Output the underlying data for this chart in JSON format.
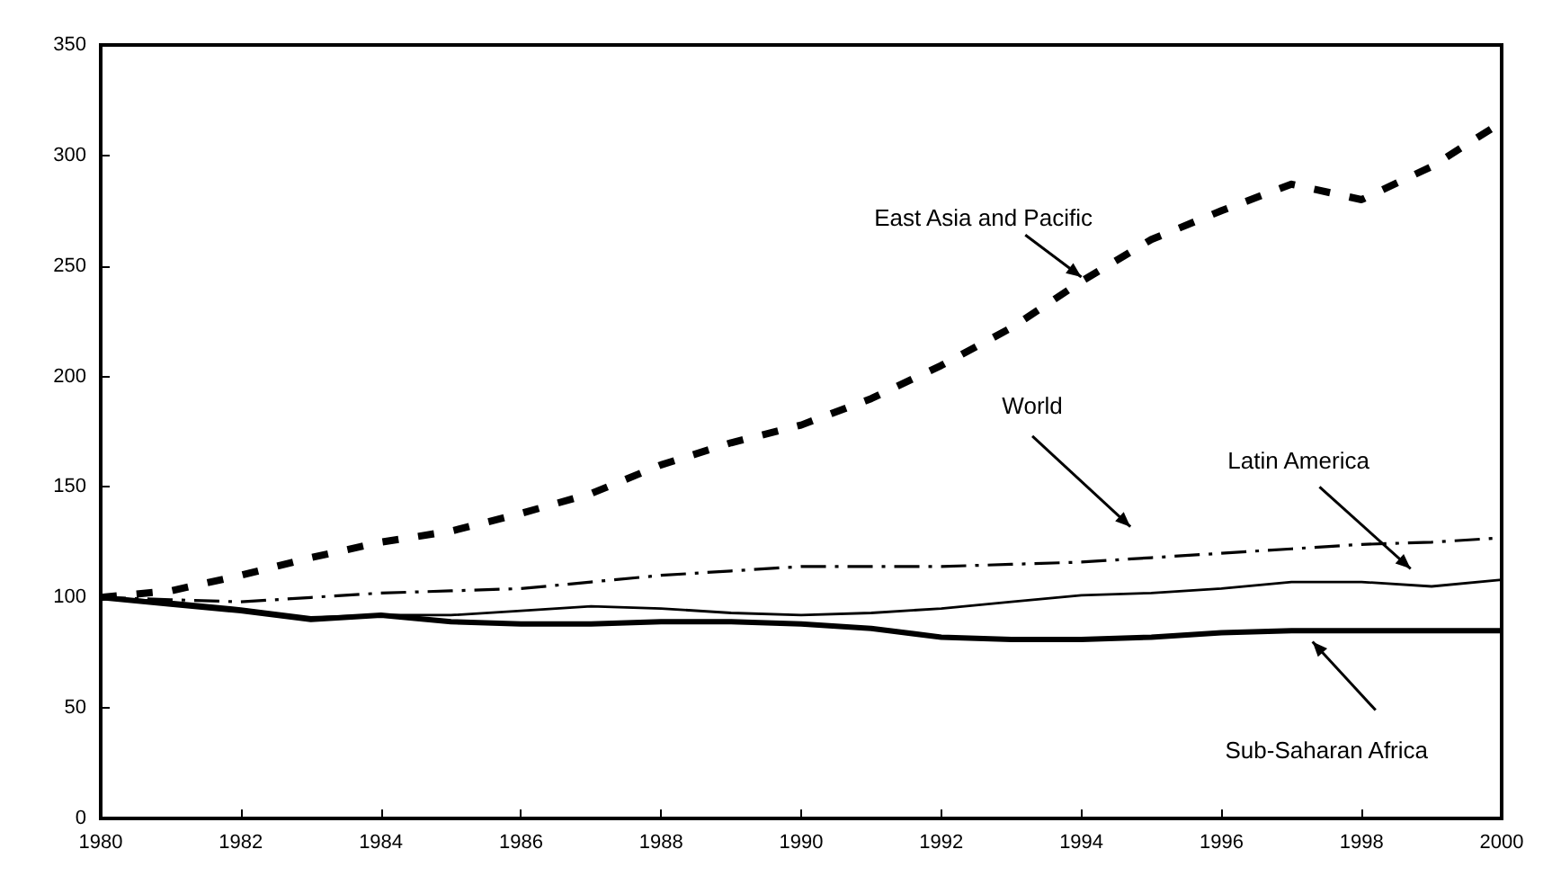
{
  "chart_data": {
    "type": "line",
    "x": [
      1980,
      1981,
      1982,
      1983,
      1984,
      1985,
      1986,
      1987,
      1988,
      1989,
      1990,
      1991,
      1992,
      1993,
      1994,
      1995,
      1996,
      1997,
      1998,
      1999,
      2000
    ],
    "series": [
      {
        "name": "East Asia and Pacific",
        "color": "#000000",
        "line_style": "dotted",
        "values": [
          100,
          103,
          110,
          118,
          125,
          130,
          138,
          147,
          160,
          170,
          178,
          190,
          205,
          222,
          243,
          262,
          275,
          287,
          280,
          295,
          315
        ]
      },
      {
        "name": "World",
        "color": "#000000",
        "line_style": "dashed",
        "values": [
          100,
          99,
          98,
          100,
          102,
          103,
          104,
          107,
          110,
          112,
          114,
          114,
          114,
          115,
          116,
          118,
          120,
          122,
          124,
          125,
          127
        ]
      },
      {
        "name": "Latin America",
        "color": "#000000",
        "line_style": "solid",
        "values": [
          100,
          98,
          95,
          91,
          92,
          92,
          94,
          96,
          95,
          93,
          92,
          93,
          95,
          98,
          101,
          102,
          104,
          107,
          107,
          105,
          108
        ]
      },
      {
        "name": "Sub-Saharan Africa",
        "color": "#000000",
        "line_style": "solid",
        "values": [
          100,
          97,
          94,
          90,
          92,
          89,
          88,
          88,
          89,
          89,
          88,
          86,
          82,
          81,
          81,
          82,
          84,
          85,
          85,
          85,
          85
        ]
      }
    ],
    "xlim": [
      1980,
      2000
    ],
    "xticks": [
      1980,
      1982,
      1984,
      1986,
      1988,
      1990,
      1992,
      1994,
      1996,
      1998,
      2000
    ],
    "ylim": [
      0,
      350
    ],
    "yticks": [
      0,
      50,
      100,
      150,
      200,
      250,
      300,
      350
    ],
    "grid": false,
    "legend": false,
    "marker": "none"
  }
}
